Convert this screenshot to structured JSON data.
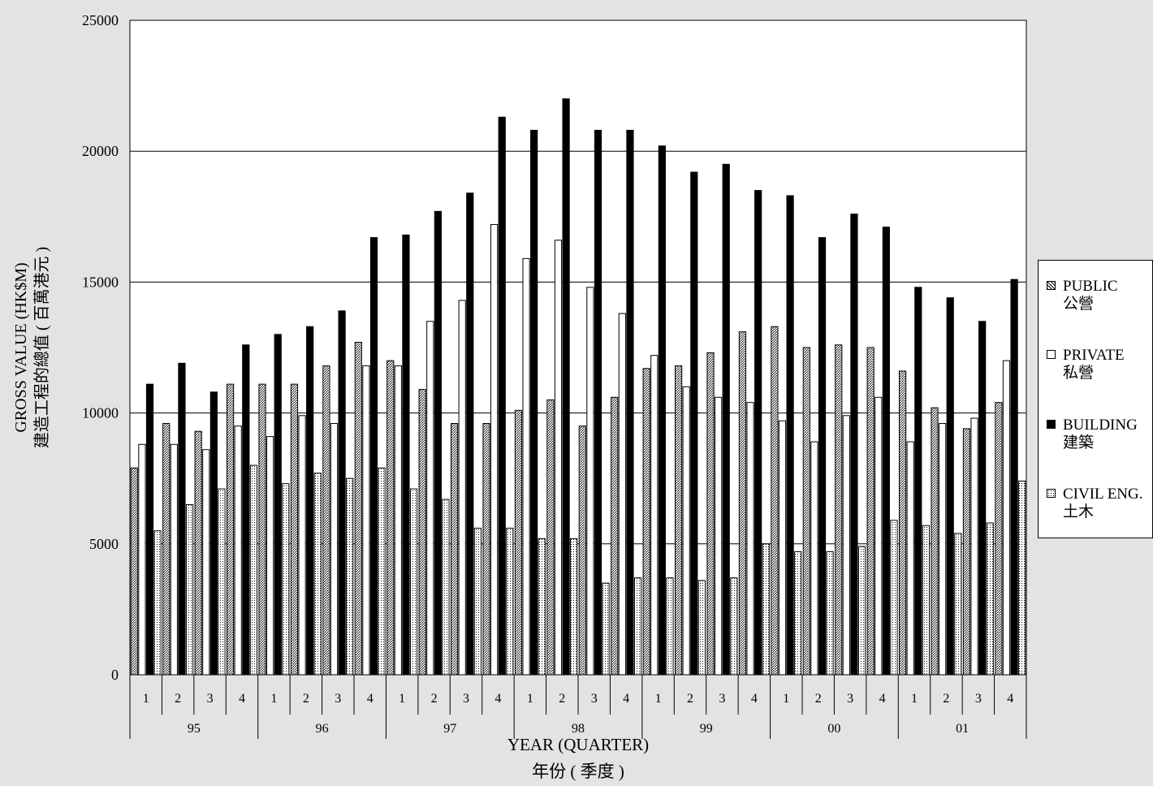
{
  "chart_data": {
    "type": "bar",
    "ylabel": "GROSS VALUE (HK$M)",
    "ylabel_zh": "建造工程的總值 ( 百萬港元 )",
    "xlabel": "YEAR (QUARTER)",
    "xlabel_zh": "年份 ( 季度 )",
    "ylim": [
      0,
      25000
    ],
    "yticks": [
      "0",
      "5000",
      "10000",
      "15000",
      "20000",
      "25000"
    ],
    "grid": true,
    "legend_position": "right",
    "years": [
      "95",
      "96",
      "97",
      "98",
      "99",
      "00",
      "01"
    ],
    "quarters": [
      "1",
      "2",
      "3",
      "4"
    ],
    "series": [
      {
        "name": "PUBLIC",
        "name_zh": "公營",
        "pattern": "hatched",
        "values": [
          7900,
          9600,
          9300,
          11100,
          11100,
          11100,
          11800,
          12700,
          12000,
          10900,
          9600,
          9600,
          10100,
          10500,
          9500,
          10600,
          11700,
          11800,
          12300,
          13100,
          13300,
          12500,
          12600,
          12500,
          11600,
          10200,
          9400,
          10400
        ]
      },
      {
        "name": "PRIVATE",
        "name_zh": "私營",
        "pattern": "white",
        "values": [
          8800,
          8800,
          8600,
          9500,
          9100,
          9900,
          9600,
          11800,
          11800,
          13500,
          14300,
          17200,
          15900,
          16600,
          14800,
          13800,
          12200,
          11000,
          10600,
          10400,
          9700,
          8900,
          9900,
          10600,
          8900,
          9600,
          9800,
          12000
        ]
      },
      {
        "name": "BUILDING",
        "name_zh": "建築",
        "pattern": "solid",
        "values": [
          11100,
          11900,
          10800,
          12600,
          13000,
          13300,
          13900,
          16700,
          16800,
          17700,
          18400,
          21300,
          20800,
          22000,
          20800,
          20800,
          20200,
          19200,
          19500,
          18500,
          18300,
          16700,
          17600,
          17100,
          14800,
          14400,
          13500,
          15100
        ]
      },
      {
        "name": "CIVIL ENG.",
        "name_zh": "土木",
        "pattern": "dotted",
        "values": [
          5500,
          6500,
          7100,
          8000,
          7300,
          7700,
          7500,
          7900,
          7100,
          6700,
          5600,
          5600,
          5200,
          5200,
          3500,
          3700,
          3700,
          3600,
          3700,
          5000,
          4700,
          4700,
          4900,
          5900,
          5700,
          5400,
          5800,
          7400
        ]
      }
    ]
  }
}
